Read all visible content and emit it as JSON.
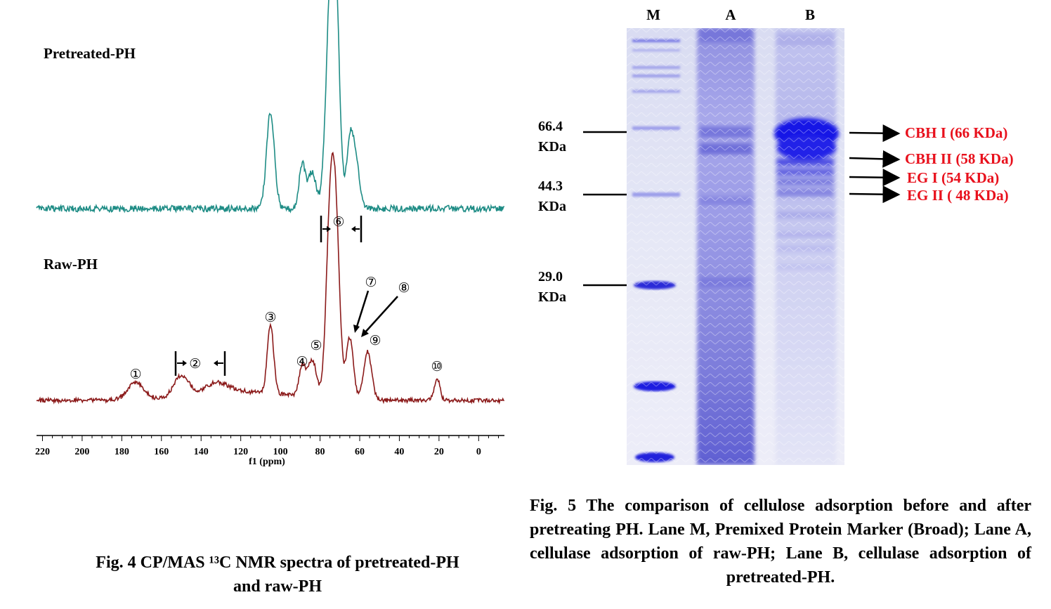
{
  "figure4": {
    "chart_data": {
      "type": "line",
      "xlabel": "f1 (ppm)",
      "xlim": [
        223,
        -13
      ],
      "x_ticks": [
        "220",
        "200",
        "180",
        "160",
        "140",
        "120",
        "100",
        "80",
        "60",
        "40",
        "20",
        "0"
      ],
      "x_reversed": true,
      "series": [
        {
          "name": "Pretreated-PH",
          "color": "#1e8c85",
          "peaks": [
            {
              "x": 105,
              "height": 0.53
            },
            {
              "x": 89,
              "height": 0.24
            },
            {
              "x": 84,
              "height": 0.2
            },
            {
              "x": 75,
              "height": 1.0
            },
            {
              "x": 72,
              "height": 0.98
            },
            {
              "x": 65,
              "height": 0.35
            },
            {
              "x": 62,
              "height": 0.26
            }
          ]
        },
        {
          "name": "Raw-PH",
          "color": "#8b1a1a",
          "peaks": [
            {
              "x": 173,
              "height": 0.1
            },
            {
              "x": 152,
              "height": 0.07
            },
            {
              "x": 148,
              "height": 0.08
            },
            {
              "x": 132,
              "height": 0.06
            },
            {
              "x": 105,
              "height": 0.4
            },
            {
              "x": 89,
              "height": 0.17
            },
            {
              "x": 84,
              "height": 0.22
            },
            {
              "x": 75,
              "height": 0.96
            },
            {
              "x": 72,
              "height": 0.93
            },
            {
              "x": 65,
              "height": 0.36
            },
            {
              "x": 56,
              "height": 0.28
            },
            {
              "x": 21,
              "height": 0.13
            }
          ]
        }
      ],
      "annotations": [
        {
          "label": "①",
          "x": 173
        },
        {
          "label": "②",
          "x": 143
        },
        {
          "label": "③",
          "x": 105
        },
        {
          "label": "④",
          "x": 89
        },
        {
          "label": "⑤",
          "x": 84
        },
        {
          "label": "⑥",
          "x": 72
        },
        {
          "label": "⑦",
          "x": 65
        },
        {
          "label": "⑧",
          "x": 60
        },
        {
          "label": "⑨",
          "x": 56
        },
        {
          "label": "⑩",
          "x": 21
        }
      ]
    },
    "caption_line1": "Fig. 4 CP/MAS ¹³C NMR spectra of pretreated-PH",
    "caption_line2": "and raw-PH"
  },
  "figure5": {
    "lanes": [
      "M",
      "A",
      "B"
    ],
    "markers": [
      {
        "value": "66.4",
        "unit": "KDa"
      },
      {
        "value": "44.3",
        "unit": "KDa"
      },
      {
        "value": "29.0",
        "unit": "KDa"
      }
    ],
    "enzymes": [
      "CBH I (66 KDa)",
      "CBH II (58 KDa)",
      "EG I (54 KDa)",
      "EG II ( 48 KDa)"
    ],
    "enzyme_color": "#e8101c",
    "caption": "Fig. 5 The comparison of cellulose adsorption before and after pretreating PH. Lane M, Premixed Protein Marker (Broad); Lane A, cellulase adsorption of raw-PH; Lane B, cellulase adsorption of pretreated-PH."
  }
}
